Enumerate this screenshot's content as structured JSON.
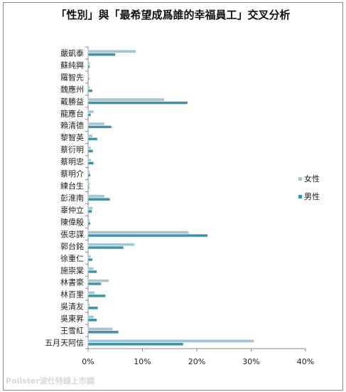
{
  "chart_data": {
    "type": "bar",
    "orientation": "horizontal",
    "title": "「性別」與「最希望成爲誰的幸福員工」交叉分析",
    "categories": [
      "嚴凱泰",
      "蘇純興",
      "羅智先",
      "魏應州",
      "戴勝益",
      "龍應台",
      "賴清德",
      "黎智英",
      "蔡衍明",
      "蔡明忠",
      "蔡明介",
      "練台生",
      "彭淮南",
      "辜仲立",
      "陳偉殷",
      "張忠謀",
      "郭台銘",
      "徐重仁",
      "施崇棠",
      "林書豪",
      "林百里",
      "吳清友",
      "吳東昇",
      "王雪紅",
      "五月天阿信"
    ],
    "series": [
      {
        "name": "女性",
        "color": "#a3c6d6",
        "values": [
          8.8,
          0.3,
          0.2,
          0.3,
          14.0,
          1.0,
          3.0,
          0.8,
          0.5,
          0.5,
          0.3,
          0.3,
          3.0,
          0.8,
          0.3,
          18.5,
          8.5,
          0.5,
          1.0,
          3.8,
          1.2,
          0.3,
          1.0,
          4.5,
          30.5
        ]
      },
      {
        "name": "男性",
        "color": "#3a93aa",
        "values": [
          5.0,
          0.3,
          0.2,
          0.8,
          18.3,
          0.5,
          4.3,
          1.7,
          0.9,
          1.0,
          0.4,
          0.2,
          4.0,
          0.7,
          0.4,
          22.0,
          6.5,
          0.8,
          1.6,
          2.4,
          3.2,
          1.8,
          1.6,
          5.6,
          17.5
        ]
      }
    ],
    "xlim": [
      0,
      40
    ],
    "xticks": [
      "0%",
      "10%",
      "20%",
      "30%",
      "40%"
    ],
    "grid": false,
    "legend": "right"
  },
  "watermark": "Pollster波仕特線上市調"
}
